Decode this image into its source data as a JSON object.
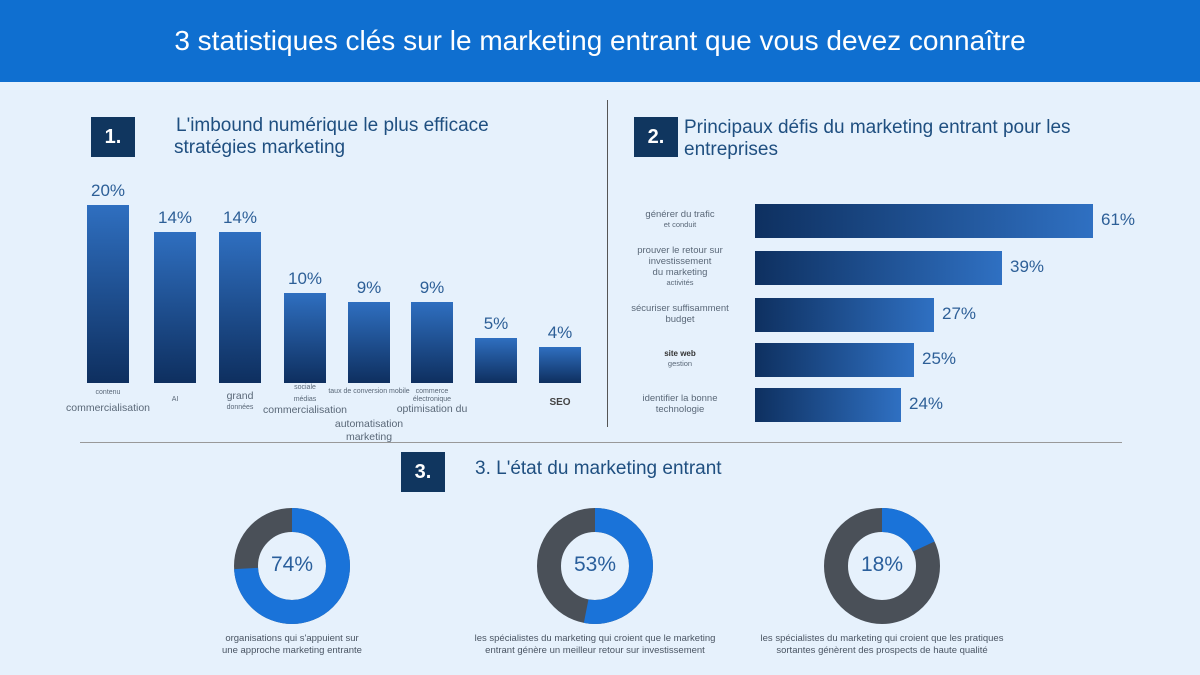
{
  "title": "3 statistiques clés sur le marketing entrant que vous devez connaître",
  "colors": {
    "header": "#0f6fd0",
    "badge": "#10365f",
    "bar_top": "#2f6fc0",
    "bar_bottom": "#0e2f5f",
    "donut_blue": "#1a73d9",
    "donut_gray": "#4a5058"
  },
  "sections": [
    {
      "number": "1.",
      "title_line1": "L'imbound numérique le plus efficace",
      "title_line2": "stratégies marketing"
    },
    {
      "number": "2.",
      "title_line1": "Principaux défis du marketing entrant pour les",
      "title_line2": "entreprises"
    },
    {
      "number": "3.",
      "title_line1": "3. L'état du marketing entrant"
    }
  ],
  "chart_data": [
    {
      "type": "bar",
      "orientation": "vertical",
      "categories": [
        [
          "contenu",
          "commercialisation"
        ],
        [
          "AI"
        ],
        [
          "grand",
          "données"
        ],
        [
          "sociale",
          "médias",
          "commercialisation"
        ],
        [
          "taux de conversion mobile",
          "automatisation",
          "marketing"
        ],
        [
          "commerce",
          "électronique",
          "optimisation du"
        ],
        [
          ""
        ],
        [
          "SEO"
        ]
      ],
      "values": [
        20,
        14,
        14,
        10,
        9,
        9,
        5,
        4
      ],
      "value_labels": [
        "20%",
        "14%",
        "14%",
        "10%",
        "9%",
        "9%",
        "5%",
        "4%"
      ],
      "unit": "%"
    },
    {
      "type": "bar",
      "orientation": "horizontal",
      "categories": [
        [
          "générer du trafic",
          "et conduit"
        ],
        [
          "prouver le retour sur",
          "investissement",
          "du marketing",
          "activités"
        ],
        [
          "sécuriser suffisamment",
          "budget"
        ],
        [
          "site web",
          "gestion"
        ],
        [
          "identifier la bonne",
          "technologie"
        ]
      ],
      "values": [
        61,
        39,
        27,
        25,
        24
      ],
      "value_labels": [
        "61%",
        "39%",
        "27%",
        "25%",
        "24%"
      ],
      "unit": "%"
    },
    {
      "type": "pie",
      "style": "donut",
      "items": [
        {
          "value": 74,
          "label": "74%",
          "caption_line1": "organisations qui s'appuient sur",
          "caption_line2": "une approche marketing entrante"
        },
        {
          "value": 53,
          "label": "53%",
          "caption_line1": "les spécialistes du marketing qui croient que le marketing",
          "caption_line2": "entrant génère un meilleur retour sur investissement"
        },
        {
          "value": 18,
          "label": "18%",
          "caption_line1": "les spécialistes du marketing qui croient que les pratiques",
          "caption_line2": "sortantes génèrent des prospects de haute qualité"
        }
      ]
    }
  ]
}
